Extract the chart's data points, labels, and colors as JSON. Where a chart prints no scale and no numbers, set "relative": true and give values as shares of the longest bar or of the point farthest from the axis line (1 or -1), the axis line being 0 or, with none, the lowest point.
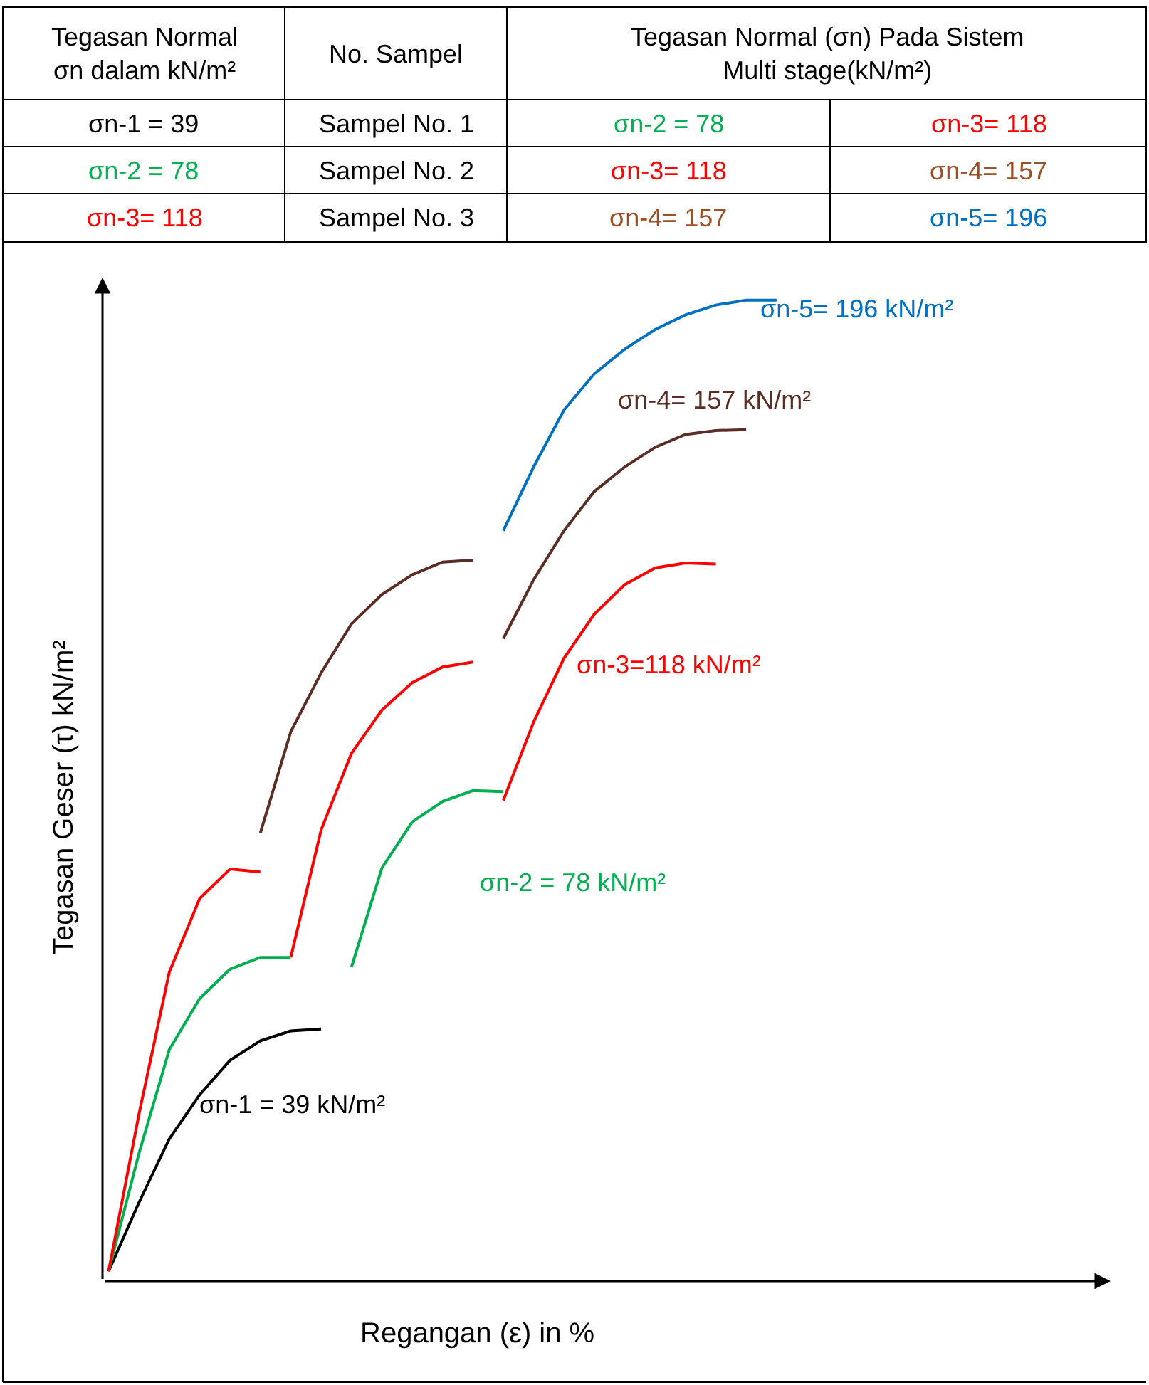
{
  "chart_data": [
    {
      "type": "other",
      "categories": [
        "Tegasan Normal\nσn dalam kN/m²",
        "No. Sampel",
        "Tegasan Normal (σn) Pada Sistem\nMulti stage(kN/m²)"
      ],
      "cell_labels": [
        [
          "σn-1 = 39",
          "Sampel No. 1",
          "σn-2 = 78",
          "σn-3= 118"
        ],
        [
          "σn-2 = 78",
          "Sampel No. 2",
          "σn-3= 118",
          "σn-4= 157"
        ],
        [
          "σn-3= 118",
          "Sampel No. 3",
          "σn-4= 157",
          "σn-5= 196"
        ]
      ],
      "colors": [
        [
          "#000000",
          "#000000",
          "#00b050",
          "#ff0000"
        ],
        [
          "#00b050",
          "#000000",
          "#ff0000",
          "#9c5027"
        ],
        [
          "#ff0000",
          "#000000",
          "#9c5027",
          "#0070c0"
        ]
      ]
    },
    {
      "type": "line",
      "relative": true,
      "xlabel": "Regangan (ε) in %",
      "ylabel": "Tegasan Geser (τ) kN/m²",
      "marker": "none",
      "line_style": "solid",
      "categories": [
        null,
        null,
        null,
        null,
        null,
        null,
        null,
        null,
        null,
        null,
        null,
        null,
        null,
        null,
        null,
        null,
        null,
        null,
        null,
        null,
        null,
        null,
        null
      ],
      "series": [
        {
          "name": "σn-1 = 39 kN/m²",
          "color": "#000000",
          "values": [
            0.01,
            0.08,
            0.145,
            0.19,
            0.225,
            0.245,
            0.255,
            0.257,
            null,
            null,
            null,
            null,
            null,
            null,
            null,
            null,
            null,
            null,
            null,
            null,
            null,
            null,
            null
          ]
        },
        {
          "color": "#00b050",
          "values": [
            0.01,
            0.13,
            0.236,
            0.288,
            0.318,
            0.33,
            0.33,
            null,
            null,
            null,
            null,
            null,
            null,
            null,
            null,
            null,
            null,
            null,
            null,
            null,
            null,
            null,
            null
          ]
        },
        {
          "name": "σn-2 = 78 kN/m²",
          "color": "#00b050",
          "values": [
            null,
            null,
            null,
            null,
            null,
            null,
            null,
            null,
            0.32,
            0.421,
            0.468,
            0.489,
            0.5,
            0.499,
            null,
            null,
            null,
            null,
            null,
            null,
            null,
            null,
            null
          ]
        },
        {
          "color": "#ff0000",
          "values": [
            0.01,
            0.17,
            0.315,
            0.39,
            0.42,
            0.417,
            null,
            null,
            null,
            null,
            null,
            null,
            null,
            null,
            null,
            null,
            null,
            null,
            null,
            null,
            null,
            null,
            null
          ]
        },
        {
          "color": "#ff0000",
          "values": [
            null,
            null,
            null,
            null,
            null,
            null,
            0.33,
            0.46,
            0.538,
            0.582,
            0.61,
            0.626,
            0.631,
            null,
            null,
            null,
            null,
            null,
            null,
            null,
            null,
            null,
            null
          ]
        },
        {
          "name": "σn-3=118 kN/m²",
          "color": "#ff0000",
          "values": [
            null,
            null,
            null,
            null,
            null,
            null,
            null,
            null,
            null,
            null,
            null,
            null,
            null,
            0.49,
            0.57,
            0.635,
            0.68,
            0.71,
            0.727,
            0.732,
            0.731,
            null,
            null
          ]
        },
        {
          "color": "#5a2d25",
          "values": [
            null,
            null,
            null,
            null,
            null,
            0.457,
            0.56,
            0.62,
            0.67,
            0.7,
            0.72,
            0.733,
            0.735,
            null,
            null,
            null,
            null,
            null,
            null,
            null,
            null,
            null,
            null
          ]
        },
        {
          "name": "σn-4= 157 kN/m²",
          "color": "#5a2d25",
          "values": [
            null,
            null,
            null,
            null,
            null,
            null,
            null,
            null,
            null,
            null,
            null,
            null,
            null,
            0.655,
            0.715,
            0.765,
            0.805,
            0.83,
            0.85,
            0.863,
            0.867,
            0.868,
            null
          ]
        },
        {
          "name": "σn-5= 196 kN/m²",
          "color": "#0070c0",
          "values": [
            null,
            null,
            null,
            null,
            null,
            null,
            null,
            null,
            null,
            null,
            null,
            null,
            null,
            0.765,
            0.83,
            0.888,
            0.925,
            0.95,
            0.97,
            0.985,
            0.995,
            1.0,
            1.0
          ]
        }
      ]
    }
  ]
}
